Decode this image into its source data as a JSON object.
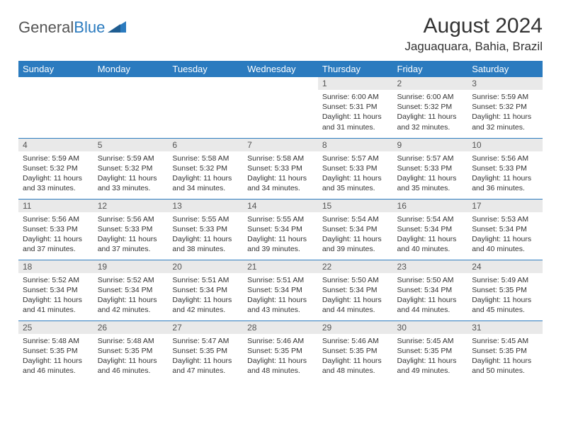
{
  "logo": {
    "part1": "General",
    "part2": "Blue"
  },
  "title": {
    "month": "August 2024",
    "location": "Jaguaquara, Bahia, Brazil"
  },
  "colors": {
    "header_bg": "#2b7bbf",
    "header_text": "#ffffff",
    "daynum_bg": "#e9e9e9",
    "row_border": "#2b7bbf",
    "body_text": "#333333",
    "logo_gray": "#555555",
    "logo_blue": "#2b7bbf"
  },
  "weekdays": [
    "Sunday",
    "Monday",
    "Tuesday",
    "Wednesday",
    "Thursday",
    "Friday",
    "Saturday"
  ],
  "weeks": [
    [
      null,
      null,
      null,
      null,
      {
        "n": "1",
        "sr": "6:00 AM",
        "ss": "5:31 PM",
        "dl": "11 hours and 31 minutes."
      },
      {
        "n": "2",
        "sr": "6:00 AM",
        "ss": "5:32 PM",
        "dl": "11 hours and 32 minutes."
      },
      {
        "n": "3",
        "sr": "5:59 AM",
        "ss": "5:32 PM",
        "dl": "11 hours and 32 minutes."
      }
    ],
    [
      {
        "n": "4",
        "sr": "5:59 AM",
        "ss": "5:32 PM",
        "dl": "11 hours and 33 minutes."
      },
      {
        "n": "5",
        "sr": "5:59 AM",
        "ss": "5:32 PM",
        "dl": "11 hours and 33 minutes."
      },
      {
        "n": "6",
        "sr": "5:58 AM",
        "ss": "5:32 PM",
        "dl": "11 hours and 34 minutes."
      },
      {
        "n": "7",
        "sr": "5:58 AM",
        "ss": "5:33 PM",
        "dl": "11 hours and 34 minutes."
      },
      {
        "n": "8",
        "sr": "5:57 AM",
        "ss": "5:33 PM",
        "dl": "11 hours and 35 minutes."
      },
      {
        "n": "9",
        "sr": "5:57 AM",
        "ss": "5:33 PM",
        "dl": "11 hours and 35 minutes."
      },
      {
        "n": "10",
        "sr": "5:56 AM",
        "ss": "5:33 PM",
        "dl": "11 hours and 36 minutes."
      }
    ],
    [
      {
        "n": "11",
        "sr": "5:56 AM",
        "ss": "5:33 PM",
        "dl": "11 hours and 37 minutes."
      },
      {
        "n": "12",
        "sr": "5:56 AM",
        "ss": "5:33 PM",
        "dl": "11 hours and 37 minutes."
      },
      {
        "n": "13",
        "sr": "5:55 AM",
        "ss": "5:33 PM",
        "dl": "11 hours and 38 minutes."
      },
      {
        "n": "14",
        "sr": "5:55 AM",
        "ss": "5:34 PM",
        "dl": "11 hours and 39 minutes."
      },
      {
        "n": "15",
        "sr": "5:54 AM",
        "ss": "5:34 PM",
        "dl": "11 hours and 39 minutes."
      },
      {
        "n": "16",
        "sr": "5:54 AM",
        "ss": "5:34 PM",
        "dl": "11 hours and 40 minutes."
      },
      {
        "n": "17",
        "sr": "5:53 AM",
        "ss": "5:34 PM",
        "dl": "11 hours and 40 minutes."
      }
    ],
    [
      {
        "n": "18",
        "sr": "5:52 AM",
        "ss": "5:34 PM",
        "dl": "11 hours and 41 minutes."
      },
      {
        "n": "19",
        "sr": "5:52 AM",
        "ss": "5:34 PM",
        "dl": "11 hours and 42 minutes."
      },
      {
        "n": "20",
        "sr": "5:51 AM",
        "ss": "5:34 PM",
        "dl": "11 hours and 42 minutes."
      },
      {
        "n": "21",
        "sr": "5:51 AM",
        "ss": "5:34 PM",
        "dl": "11 hours and 43 minutes."
      },
      {
        "n": "22",
        "sr": "5:50 AM",
        "ss": "5:34 PM",
        "dl": "11 hours and 44 minutes."
      },
      {
        "n": "23",
        "sr": "5:50 AM",
        "ss": "5:34 PM",
        "dl": "11 hours and 44 minutes."
      },
      {
        "n": "24",
        "sr": "5:49 AM",
        "ss": "5:35 PM",
        "dl": "11 hours and 45 minutes."
      }
    ],
    [
      {
        "n": "25",
        "sr": "5:48 AM",
        "ss": "5:35 PM",
        "dl": "11 hours and 46 minutes."
      },
      {
        "n": "26",
        "sr": "5:48 AM",
        "ss": "5:35 PM",
        "dl": "11 hours and 46 minutes."
      },
      {
        "n": "27",
        "sr": "5:47 AM",
        "ss": "5:35 PM",
        "dl": "11 hours and 47 minutes."
      },
      {
        "n": "28",
        "sr": "5:46 AM",
        "ss": "5:35 PM",
        "dl": "11 hours and 48 minutes."
      },
      {
        "n": "29",
        "sr": "5:46 AM",
        "ss": "5:35 PM",
        "dl": "11 hours and 48 minutes."
      },
      {
        "n": "30",
        "sr": "5:45 AM",
        "ss": "5:35 PM",
        "dl": "11 hours and 49 minutes."
      },
      {
        "n": "31",
        "sr": "5:45 AM",
        "ss": "5:35 PM",
        "dl": "11 hours and 50 minutes."
      }
    ]
  ],
  "labels": {
    "sunrise": "Sunrise:",
    "sunset": "Sunset:",
    "daylight": "Daylight:"
  }
}
